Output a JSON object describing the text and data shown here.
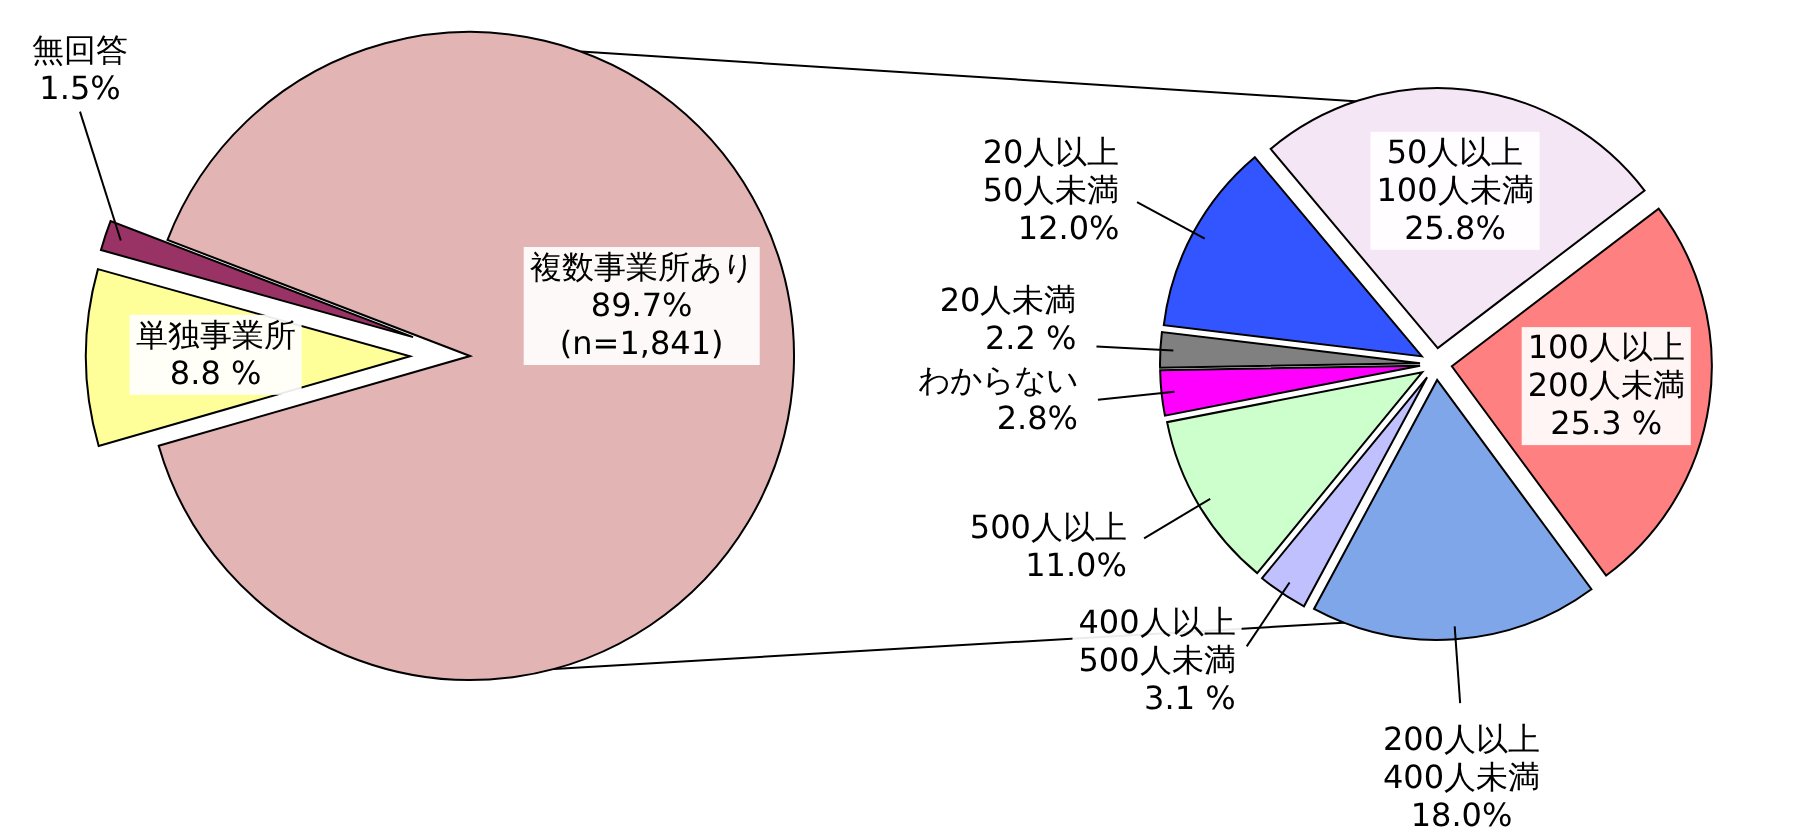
{
  "chart_data": [
    {
      "type": "pie",
      "categories": [
        "複数事業所あり",
        "単独事業所",
        "無回答"
      ],
      "values": [
        89.7,
        8.8,
        1.5
      ],
      "value_labels": [
        "89.7%",
        "8.8 %",
        "1.5%"
      ],
      "colors": [
        "#e2b4b4",
        "#ffff99",
        "#993366"
      ],
      "annotations": [
        "(n=1,841)"
      ]
    },
    {
      "type": "pie",
      "categories": [
        "50人以上\n100人未満",
        "100人以上\n200人未満",
        "200人以上\n400人未満",
        "400人以上\n500人未満",
        "500人以上",
        "わからない",
        "20人未満",
        "20人以上\n50人未満"
      ],
      "values": [
        25.8,
        25.3,
        18.0,
        3.1,
        11.0,
        2.8,
        2.2,
        12.0
      ],
      "value_labels": [
        "25.8%",
        "25.3 %",
        "18.0%",
        "3.1 %",
        "11.0%",
        "2.8%",
        "2.2 %",
        "12.0%"
      ],
      "colors": [
        "#f4e6f4",
        "#ff8080",
        "#7fa6e8",
        "#c0c0ff",
        "#ccffcc",
        "#ff00ff",
        "#808080",
        "#3355ff"
      ]
    }
  ]
}
